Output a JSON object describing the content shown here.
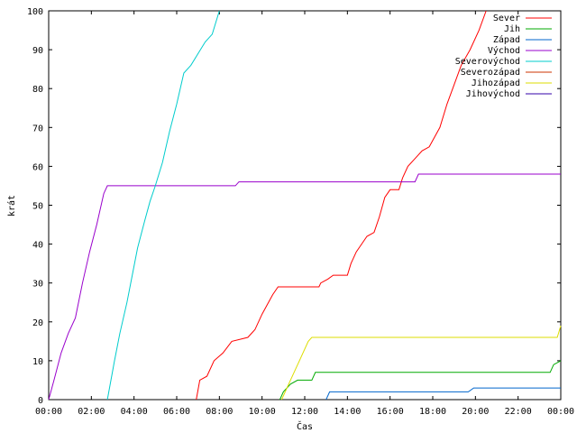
{
  "chart_data": {
    "type": "line",
    "title": "",
    "xlabel": "Čas",
    "ylabel": "krát",
    "xlim": [
      "00:00",
      "24:00"
    ],
    "ylim": [
      0,
      100
    ],
    "xticks": [
      "00:00",
      "02:00",
      "04:00",
      "06:00",
      "08:00",
      "10:00",
      "12:00",
      "14:00",
      "16:00",
      "18:00",
      "20:00",
      "22:00",
      "00:00"
    ],
    "yticks": [
      0,
      10,
      20,
      30,
      40,
      50,
      60,
      70,
      80,
      90,
      100
    ],
    "grid": false,
    "legend_position": "top-right",
    "series": [
      {
        "name": "Sever",
        "color": "#ff0000",
        "points": [
          [
            "06:55",
            0
          ],
          [
            "07:05",
            5
          ],
          [
            "07:25",
            6
          ],
          [
            "07:45",
            10
          ],
          [
            "08:10",
            12
          ],
          [
            "08:35",
            15
          ],
          [
            "09:20",
            16
          ],
          [
            "09:40",
            18
          ],
          [
            "10:00",
            22
          ],
          [
            "10:30",
            27
          ],
          [
            "10:45",
            29
          ],
          [
            "12:00",
            29
          ],
          [
            "12:40",
            29
          ],
          [
            "12:45",
            30
          ],
          [
            "13:05",
            31
          ],
          [
            "13:20",
            32
          ],
          [
            "14:00",
            32
          ],
          [
            "14:10",
            35
          ],
          [
            "14:25",
            38
          ],
          [
            "14:40",
            40
          ],
          [
            "14:55",
            42
          ],
          [
            "15:15",
            43
          ],
          [
            "15:30",
            47
          ],
          [
            "15:45",
            52
          ],
          [
            "16:00",
            54
          ],
          [
            "16:25",
            54
          ],
          [
            "16:35",
            57
          ],
          [
            "16:50",
            60
          ],
          [
            "17:10",
            62
          ],
          [
            "17:30",
            64
          ],
          [
            "17:50",
            65
          ],
          [
            "18:20",
            70
          ],
          [
            "18:40",
            76
          ],
          [
            "19:00",
            81
          ],
          [
            "19:20",
            86
          ],
          [
            "19:45",
            90
          ],
          [
            "20:10",
            95
          ],
          [
            "20:30",
            100
          ]
        ]
      },
      {
        "name": "Jih",
        "color": "#00aa00",
        "points": [
          [
            "10:50",
            0
          ],
          [
            "11:00",
            2
          ],
          [
            "11:20",
            4
          ],
          [
            "11:40",
            5
          ],
          [
            "12:20",
            5
          ],
          [
            "12:30",
            7
          ],
          [
            "19:00",
            7
          ],
          [
            "23:30",
            7
          ],
          [
            "23:40",
            9
          ],
          [
            "24:00",
            10
          ]
        ]
      },
      {
        "name": "Západ",
        "color": "#0066cc",
        "points": [
          [
            "13:00",
            0
          ],
          [
            "13:10",
            2
          ],
          [
            "19:40",
            2
          ],
          [
            "19:55",
            3
          ],
          [
            "24:00",
            3
          ]
        ]
      },
      {
        "name": "Východ",
        "color": "#9900cc",
        "points": [
          [
            "00:00",
            0
          ],
          [
            "00:15",
            5
          ],
          [
            "00:35",
            12
          ],
          [
            "00:55",
            17
          ],
          [
            "01:15",
            21
          ],
          [
            "01:35",
            30
          ],
          [
            "01:55",
            38
          ],
          [
            "02:15",
            45
          ],
          [
            "02:35",
            53
          ],
          [
            "02:45",
            55
          ],
          [
            "08:45",
            55
          ],
          [
            "08:55",
            56
          ],
          [
            "17:10",
            56
          ],
          [
            "17:20",
            58
          ],
          [
            "24:00",
            58
          ]
        ]
      },
      {
        "name": "Severovýchod",
        "color": "#00cccc",
        "points": [
          [
            "02:45",
            0
          ],
          [
            "03:05",
            10
          ],
          [
            "03:20",
            17
          ],
          [
            "03:40",
            25
          ],
          [
            "03:55",
            32
          ],
          [
            "04:10",
            39
          ],
          [
            "04:30",
            46
          ],
          [
            "04:45",
            51
          ],
          [
            "05:00",
            55
          ],
          [
            "05:20",
            61
          ],
          [
            "05:40",
            69
          ],
          [
            "06:00",
            76
          ],
          [
            "06:20",
            84
          ],
          [
            "06:40",
            86
          ],
          [
            "07:00",
            89
          ],
          [
            "07:20",
            92
          ],
          [
            "07:40",
            94
          ],
          [
            "08:00",
            100
          ]
        ]
      },
      {
        "name": "Severozápad",
        "color": "#cc3300",
        "points": []
      },
      {
        "name": "Jihozápad",
        "color": "#dddd00",
        "points": [
          [
            "10:55",
            0
          ],
          [
            "11:20",
            5
          ],
          [
            "11:45",
            10
          ],
          [
            "12:10",
            15
          ],
          [
            "12:20",
            16
          ],
          [
            "20:00",
            16
          ],
          [
            "23:50",
            16
          ],
          [
            "24:00",
            19
          ]
        ]
      },
      {
        "name": "Jihovýchod",
        "color": "#3300aa",
        "points": []
      }
    ]
  }
}
